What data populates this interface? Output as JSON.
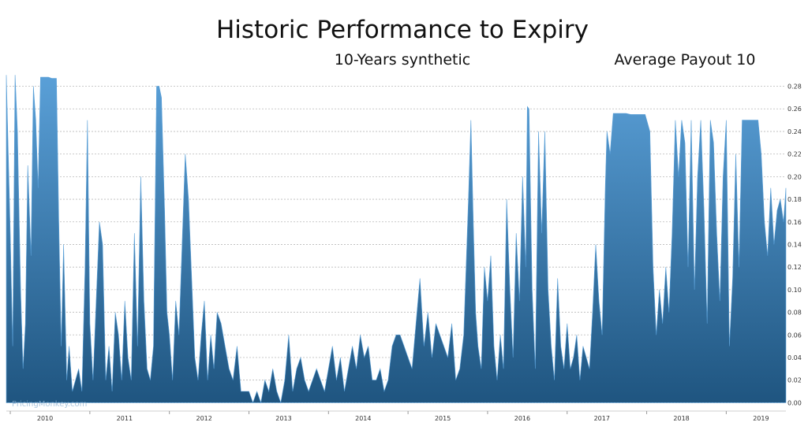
{
  "chart_data": {
    "type": "area",
    "title": "Historic Performance to Expiry",
    "subtitle_left": "10-Years synthetic",
    "subtitle_right": "Average Payout 10",
    "xlabel": "",
    "ylabel": "",
    "y_axis_side": "right",
    "ylim": [
      -0.006,
      0.295
    ],
    "y_ticks": [
      "0.00",
      "0.02",
      "0.04",
      "0.06",
      "0.08",
      "0.10",
      "0.12",
      "0.14",
      "0.16",
      "0.18",
      "0.20",
      "0.22",
      "0.24",
      "0.26",
      "0.28"
    ],
    "x_ticks": [
      "2010",
      "2011",
      "2012",
      "2013",
      "2014",
      "2015",
      "2016",
      "2017",
      "2018",
      "2019"
    ],
    "xlim": [
      2009.95,
      2019.75
    ],
    "grid": "horizontal-dashed",
    "watermark": "PricingMonkey.com",
    "colors": {
      "area_top": "#5aa0d8",
      "area_bottom": "#1f5580",
      "grid": "#b9b9b9"
    },
    "x": [
      2009.95,
      2010.0,
      2010.03,
      2010.06,
      2010.09,
      2010.13,
      2010.16,
      2010.19,
      2010.22,
      2010.26,
      2010.29,
      2010.32,
      2010.35,
      2010.38,
      2010.42,
      2010.45,
      2010.48,
      2010.52,
      2010.55,
      2010.58,
      2010.61,
      2010.64,
      2010.67,
      2010.71,
      2010.74,
      2010.78,
      2010.82,
      2010.86,
      2010.9,
      2010.94,
      2010.97,
      2011.0,
      2011.04,
      2011.08,
      2011.12,
      2011.16,
      2011.2,
      2011.24,
      2011.28,
      2011.32,
      2011.36,
      2011.4,
      2011.44,
      2011.48,
      2011.52,
      2011.56,
      2011.6,
      2011.64,
      2011.68,
      2011.72,
      2011.76,
      2011.8,
      2011.84,
      2011.87,
      2011.9,
      2011.94,
      2011.97,
      2012.0,
      2012.04,
      2012.08,
      2012.12,
      2012.16,
      2012.2,
      2012.24,
      2012.28,
      2012.32,
      2012.36,
      2012.4,
      2012.44,
      2012.48,
      2012.52,
      2012.56,
      2012.6,
      2012.65,
      2012.7,
      2012.75,
      2012.8,
      2012.85,
      2012.9,
      2012.95,
      2013.0,
      2013.05,
      2013.1,
      2013.15,
      2013.2,
      2013.25,
      2013.3,
      2013.35,
      2013.4,
      2013.45,
      2013.5,
      2013.55,
      2013.6,
      2013.65,
      2013.7,
      2013.75,
      2013.8,
      2013.85,
      2013.9,
      2013.95,
      2014.0,
      2014.05,
      2014.1,
      2014.15,
      2014.2,
      2014.25,
      2014.3,
      2014.35,
      2014.4,
      2014.45,
      2014.5,
      2014.55,
      2014.6,
      2014.65,
      2014.7,
      2014.75,
      2014.8,
      2014.85,
      2014.9,
      2014.95,
      2015.0,
      2015.05,
      2015.1,
      2015.15,
      2015.2,
      2015.25,
      2015.3,
      2015.35,
      2015.4,
      2015.45,
      2015.5,
      2015.55,
      2015.6,
      2015.65,
      2015.7,
      2015.73,
      2015.76,
      2015.79,
      2015.82,
      2015.85,
      2015.88,
      2015.92,
      2015.96,
      2016.0,
      2016.04,
      2016.08,
      2016.12,
      2016.16,
      2016.2,
      2016.24,
      2016.28,
      2016.32,
      2016.36,
      2016.4,
      2016.44,
      2016.48,
      2016.5,
      2016.52,
      2016.56,
      2016.6,
      2016.64,
      2016.68,
      2016.72,
      2016.76,
      2016.8,
      2016.84,
      2016.88,
      2016.92,
      2016.96,
      2017.0,
      2017.04,
      2017.08,
      2017.12,
      2017.16,
      2017.2,
      2017.24,
      2017.28,
      2017.32,
      2017.36,
      2017.4,
      2017.44,
      2017.48,
      2017.5,
      2017.54,
      2017.58,
      2017.62,
      2017.66,
      2017.7,
      2017.74,
      2017.8,
      2017.86,
      2017.92,
      2017.98,
      2018.04,
      2018.08,
      2018.12,
      2018.16,
      2018.2,
      2018.24,
      2018.28,
      2018.32,
      2018.36,
      2018.4,
      2018.44,
      2018.48,
      2018.52,
      2018.56,
      2018.6,
      2018.64,
      2018.68,
      2018.72,
      2018.76,
      2018.8,
      2018.84,
      2018.88,
      2018.92,
      2018.96,
      2019.0,
      2019.04,
      2019.08,
      2019.12,
      2019.16,
      2019.2,
      2019.24,
      2019.28,
      2019.32,
      2019.36,
      2019.4,
      2019.44,
      2019.48,
      2019.52,
      2019.56,
      2019.6,
      2019.64,
      2019.68,
      2019.72,
      2019.75
    ],
    "values": [
      0.29,
      0.15,
      0.05,
      0.29,
      0.24,
      0.1,
      0.03,
      0.07,
      0.21,
      0.13,
      0.28,
      0.25,
      0.19,
      0.288,
      0.288,
      0.288,
      0.288,
      0.287,
      0.287,
      0.287,
      0.16,
      0.05,
      0.14,
      0.02,
      0.05,
      0.01,
      0.02,
      0.03,
      0.01,
      0.12,
      0.25,
      0.07,
      0.02,
      0.09,
      0.16,
      0.14,
      0.02,
      0.05,
      0.01,
      0.08,
      0.06,
      0.02,
      0.09,
      0.04,
      0.02,
      0.15,
      0.05,
      0.2,
      0.09,
      0.03,
      0.02,
      0.05,
      0.28,
      0.28,
      0.27,
      0.17,
      0.08,
      0.06,
      0.02,
      0.09,
      0.06,
      0.14,
      0.22,
      0.18,
      0.11,
      0.04,
      0.02,
      0.06,
      0.09,
      0.02,
      0.06,
      0.03,
      0.08,
      0.07,
      0.05,
      0.03,
      0.02,
      0.05,
      0.01,
      0.01,
      0.01,
      0.0,
      0.01,
      0.0,
      0.02,
      0.01,
      0.03,
      0.01,
      0.0,
      0.02,
      0.06,
      0.01,
      0.03,
      0.04,
      0.02,
      0.01,
      0.02,
      0.03,
      0.02,
      0.01,
      0.03,
      0.05,
      0.02,
      0.04,
      0.01,
      0.03,
      0.05,
      0.03,
      0.06,
      0.04,
      0.05,
      0.02,
      0.02,
      0.03,
      0.01,
      0.02,
      0.05,
      0.06,
      0.06,
      0.05,
      0.04,
      0.03,
      0.07,
      0.11,
      0.05,
      0.08,
      0.04,
      0.07,
      0.06,
      0.05,
      0.04,
      0.07,
      0.02,
      0.03,
      0.06,
      0.12,
      0.18,
      0.25,
      0.16,
      0.08,
      0.05,
      0.03,
      0.12,
      0.09,
      0.13,
      0.05,
      0.02,
      0.06,
      0.03,
      0.18,
      0.1,
      0.04,
      0.15,
      0.09,
      0.2,
      0.12,
      0.262,
      0.26,
      0.1,
      0.03,
      0.24,
      0.15,
      0.24,
      0.1,
      0.05,
      0.02,
      0.11,
      0.05,
      0.03,
      0.07,
      0.03,
      0.04,
      0.06,
      0.02,
      0.05,
      0.04,
      0.03,
      0.08,
      0.14,
      0.09,
      0.06,
      0.19,
      0.24,
      0.22,
      0.256,
      0.256,
      0.256,
      0.256,
      0.256,
      0.255,
      0.255,
      0.255,
      0.255,
      0.24,
      0.12,
      0.06,
      0.1,
      0.07,
      0.12,
      0.08,
      0.15,
      0.25,
      0.2,
      0.25,
      0.23,
      0.12,
      0.25,
      0.1,
      0.2,
      0.25,
      0.17,
      0.07,
      0.25,
      0.23,
      0.15,
      0.09,
      0.2,
      0.25,
      0.05,
      0.11,
      0.22,
      0.12,
      0.25,
      0.25,
      0.25,
      0.25,
      0.25,
      0.25,
      0.22,
      0.16,
      0.13,
      0.19,
      0.14,
      0.17,
      0.18,
      0.16,
      0.19
    ]
  }
}
